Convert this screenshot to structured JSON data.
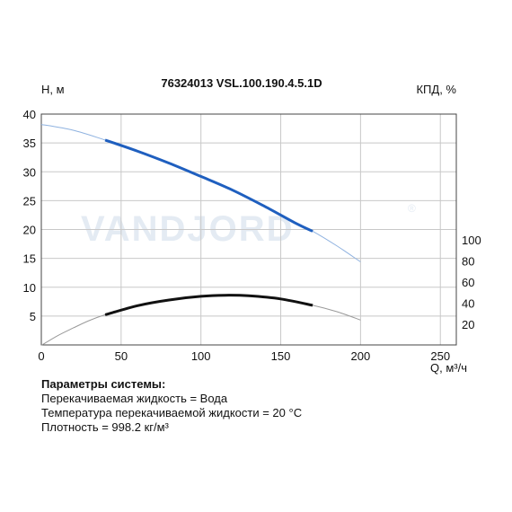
{
  "chart_data": {
    "type": "line",
    "title": "76324013 VSL.100.190.4.5.1D",
    "ylabel": "Н, м",
    "ylabel_right": "КПД, %",
    "xlabel": "Q, м³/ч",
    "xlim": [
      0,
      260
    ],
    "ylim": [
      0,
      40
    ],
    "x_ticks": [
      "0",
      "50",
      "100",
      "150",
      "200",
      "250"
    ],
    "y_ticks": [
      "5",
      "10",
      "15",
      "20",
      "25",
      "30",
      "35",
      "40"
    ],
    "right_ticks": [
      "20",
      "40",
      "60",
      "80",
      "100"
    ],
    "grid": true,
    "head_curve": {
      "color": "#1f5fbf",
      "extended_color": "#8fb2e0",
      "working_range": [
        40,
        170
      ],
      "points": [
        [
          0,
          38.2
        ],
        [
          20,
          37.2
        ],
        [
          40,
          35.5
        ],
        [
          60,
          33.6
        ],
        [
          80,
          31.5
        ],
        [
          100,
          29.2
        ],
        [
          120,
          26.8
        ],
        [
          140,
          24.0
        ],
        [
          160,
          21.0
        ],
        [
          170,
          19.7
        ],
        [
          185,
          17.2
        ],
        [
          200,
          14.4
        ]
      ]
    },
    "efficiency_curve": {
      "color": "#111111",
      "extended_color": "#999999",
      "working_range": [
        40,
        170
      ],
      "right_scale_range": [
        20,
        100
      ],
      "points": [
        [
          0,
          0
        ],
        [
          10,
          9.0
        ],
        [
          20,
          16.5
        ],
        [
          30,
          23.5
        ],
        [
          40,
          29.0
        ],
        [
          60,
          37.5
        ],
        [
          80,
          43.0
        ],
        [
          100,
          46.5
        ],
        [
          115,
          47.5
        ],
        [
          130,
          47.0
        ],
        [
          150,
          44.0
        ],
        [
          170,
          38.0
        ],
        [
          185,
          32.0
        ],
        [
          200,
          24.0
        ]
      ]
    }
  },
  "watermark": {
    "text": "VANDJORD",
    "mark": "®"
  },
  "params": {
    "title": "Параметры системы:",
    "line1": "Перекачиваемая жидкость = Вода",
    "line2": "Температура перекачиваемой жидкости = 20 °C",
    "line3": "Плотность = 998.2 кг/м³"
  }
}
